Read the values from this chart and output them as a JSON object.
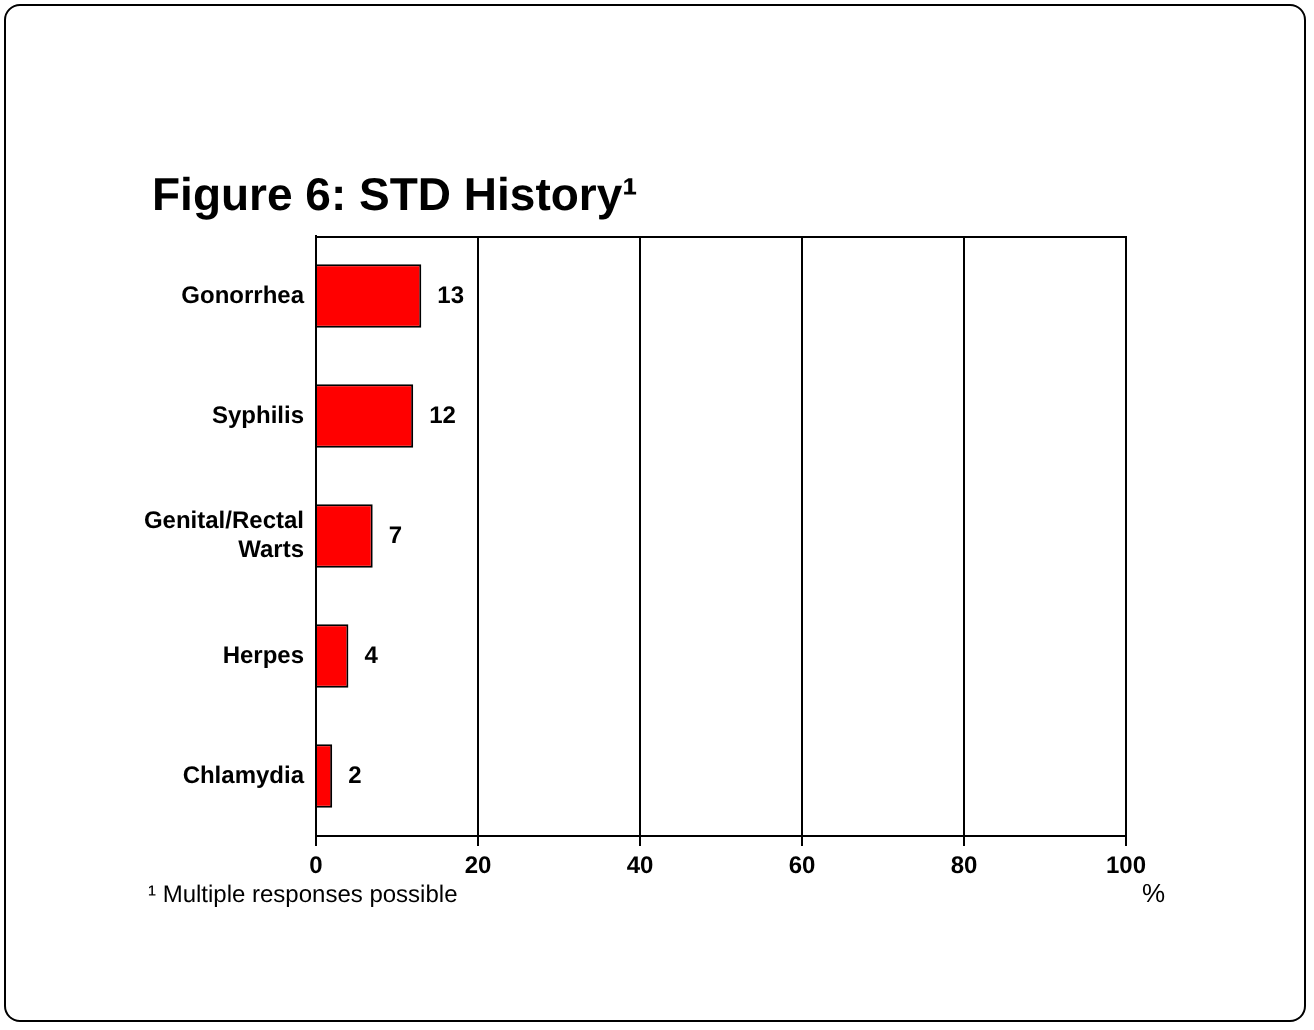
{
  "chart_data": {
    "type": "bar",
    "orientation": "horizontal",
    "title": "Figure 6: STD History¹",
    "xlabel": "%",
    "annotations": [
      "¹ Multiple responses possible"
    ],
    "categories": [
      "Gonorrhea",
      "Syphilis",
      "Genital/Rectal Warts",
      "Herpes",
      "Chlamydia"
    ],
    "values": [
      13,
      12,
      7,
      4,
      2
    ],
    "color": "#ff0000",
    "xlim": [
      0,
      100
    ],
    "xticks": [
      0,
      20,
      40,
      60,
      80,
      100
    ],
    "grid": "x",
    "data_labels": true
  }
}
